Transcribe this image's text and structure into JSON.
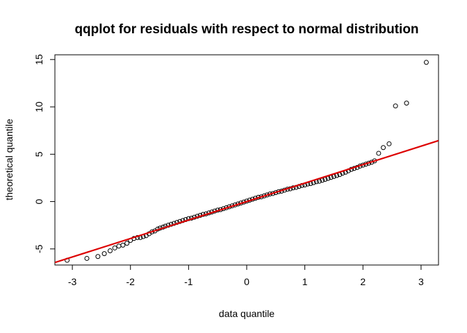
{
  "chart_data": {
    "type": "scatter",
    "title": "qqplot for residuals with respect to normal distribution",
    "xlabel": "data quantile",
    "ylabel": "theoretical quantile",
    "xlim": [
      -3.3,
      3.3
    ],
    "ylim": [
      -6.7,
      15.5
    ],
    "xticks": [
      -3,
      -2,
      -1,
      0,
      1,
      2,
      3
    ],
    "yticks": [
      -5,
      0,
      5,
      10,
      15
    ],
    "grid": false,
    "legend": "none",
    "point_color": "#000000",
    "line_color": "#dd0000",
    "reference_line": {
      "intercept": 0.0,
      "slope": 1.95
    },
    "points": {
      "x": [
        -3.09,
        -2.75,
        -2.56,
        -2.45,
        -2.35,
        -2.27,
        -2.2,
        -2.13,
        -2.06,
        -2.0,
        -1.94,
        -1.88,
        -1.83,
        -1.78,
        -1.73,
        -1.68,
        -1.63,
        -1.58,
        -1.53,
        -1.49,
        -1.44,
        -1.4,
        -1.35,
        -1.3,
        -1.25,
        -1.2,
        -1.15,
        -1.1,
        -1.05,
        -1.0,
        -0.95,
        -0.9,
        -0.85,
        -0.8,
        -0.75,
        -0.7,
        -0.65,
        -0.6,
        -0.55,
        -0.5,
        -0.45,
        -0.4,
        -0.35,
        -0.3,
        -0.25,
        -0.2,
        -0.15,
        -0.1,
        -0.05,
        0.0,
        0.05,
        0.1,
        0.15,
        0.2,
        0.25,
        0.3,
        0.35,
        0.4,
        0.45,
        0.5,
        0.55,
        0.6,
        0.65,
        0.7,
        0.75,
        0.8,
        0.85,
        0.9,
        0.95,
        1.0,
        1.05,
        1.1,
        1.15,
        1.2,
        1.25,
        1.3,
        1.35,
        1.4,
        1.45,
        1.5,
        1.55,
        1.6,
        1.65,
        1.7,
        1.75,
        1.8,
        1.85,
        1.9,
        1.95,
        2.0,
        2.05,
        2.1,
        2.15,
        2.2,
        2.27,
        2.35,
        2.45,
        2.56,
        2.75,
        3.09
      ],
      "y": [
        -6.2,
        -6.0,
        -5.8,
        -5.5,
        -5.2,
        -4.9,
        -4.7,
        -4.6,
        -4.4,
        -4.1,
        -3.9,
        -3.8,
        -3.8,
        -3.7,
        -3.6,
        -3.4,
        -3.2,
        -3.1,
        -2.9,
        -2.8,
        -2.7,
        -2.6,
        -2.5,
        -2.4,
        -2.3,
        -2.2,
        -2.1,
        -2.0,
        -1.9,
        -1.8,
        -1.75,
        -1.65,
        -1.55,
        -1.45,
        -1.35,
        -1.3,
        -1.2,
        -1.1,
        -1.0,
        -0.9,
        -0.85,
        -0.75,
        -0.65,
        -0.55,
        -0.45,
        -0.35,
        -0.25,
        -0.15,
        -0.05,
        0.05,
        0.15,
        0.25,
        0.35,
        0.45,
        0.5,
        0.6,
        0.7,
        0.8,
        0.85,
        0.95,
        1.05,
        1.1,
        1.2,
        1.3,
        1.35,
        1.45,
        1.5,
        1.6,
        1.7,
        1.75,
        1.85,
        1.9,
        2.0,
        2.1,
        2.15,
        2.25,
        2.35,
        2.45,
        2.55,
        2.65,
        2.75,
        2.85,
        3.0,
        3.1,
        3.25,
        3.4,
        3.5,
        3.6,
        3.75,
        3.85,
        3.95,
        4.05,
        4.15,
        4.3,
        5.1,
        5.7,
        6.1,
        10.1,
        10.4,
        14.7
      ]
    }
  }
}
